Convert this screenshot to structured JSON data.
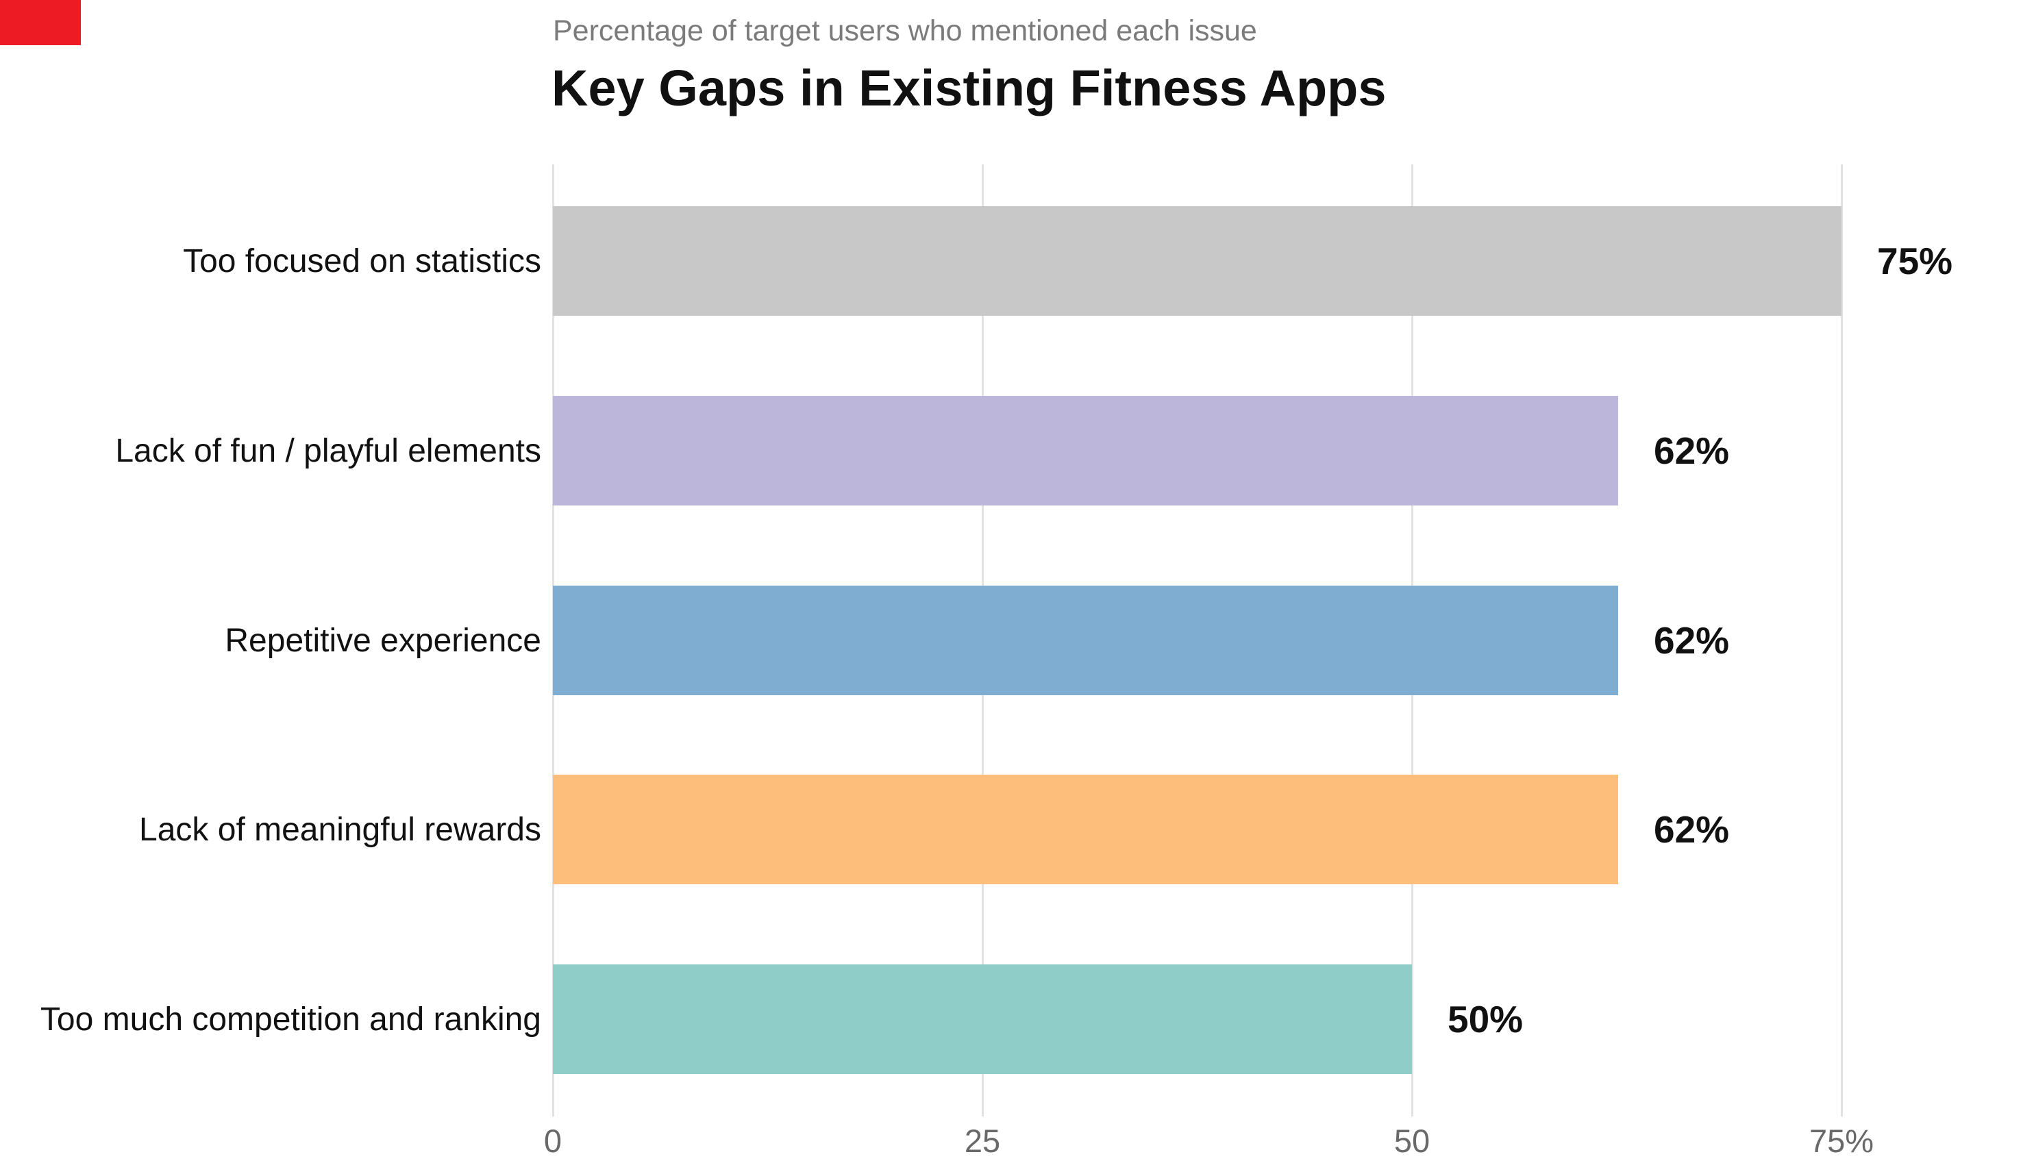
{
  "marker": {
    "name": "red-corner-rectangle",
    "color": "#ed1c24"
  },
  "chart_data": {
    "type": "bar",
    "orientation": "horizontal",
    "title": "Key Gaps in Existing Fitness Apps",
    "subtitle": "Percentage of target users who mentioned each issue",
    "categories": [
      "Too focused on statistics",
      "Lack of fun / playful elements",
      "Repetitive experience",
      "Lack of meaningful rewards",
      "Too much competition and ranking"
    ],
    "values": [
      75,
      62,
      62,
      62,
      50
    ],
    "value_labels": [
      "75%",
      "62%",
      "62%",
      "62%",
      "50%"
    ],
    "bar_colors": [
      "#c8c8c8",
      "#bcb6db",
      "#7fadd2",
      "#fdbe7c",
      "#8fcdc8"
    ],
    "xlabel": "",
    "ylabel": "",
    "xlim": [
      0,
      75
    ],
    "x_ticks": [
      {
        "value": 0,
        "label": "0"
      },
      {
        "value": 25,
        "label": "25"
      },
      {
        "value": 50,
        "label": "50"
      },
      {
        "value": 75,
        "label": "75%"
      }
    ],
    "grid": true,
    "legend": "none",
    "colors": {
      "gridline": "#e2e2e2",
      "tick_text": "#696969",
      "subtitle_text": "#7b7b7b",
      "title_text": "#111111",
      "label_text": "#111111",
      "background": "#ffffff"
    }
  }
}
